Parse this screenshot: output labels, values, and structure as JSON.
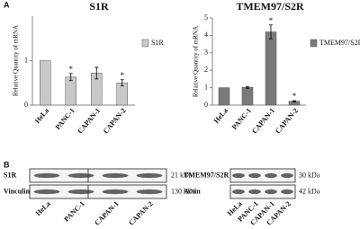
{
  "panel_labels": [
    "A",
    "B"
  ],
  "chart_data": [
    {
      "type": "bar",
      "title": "S1R",
      "y_label": "Relative Quantity of  mRNA",
      "categories": [
        "HeLa",
        "PANC-1",
        "CAPAN-1",
        "CAPAN-2"
      ],
      "series": [
        {
          "name": "S1R",
          "color": "#c8c8c8",
          "values": [
            1,
            0.63,
            0.72,
            0.5
          ],
          "errors": [
            0,
            0.08,
            0.13,
            0.07
          ]
        }
      ],
      "annotations": [
        {
          "category": "PANC-1",
          "text": "*"
        },
        {
          "category": "CAPAN-2",
          "text": "*"
        }
      ],
      "ylim": [
        0,
        2
      ],
      "yticks": [
        0,
        1
      ]
    },
    {
      "type": "bar",
      "title": "TMEM97/S2R",
      "y_label": "Relative Quantity of  mRNA",
      "categories": [
        "HeLa",
        "PANC-1",
        "CAPAN-1",
        "CAPAN-2"
      ],
      "series": [
        {
          "name": "TMEM97/S2R",
          "color": "#7a7a7a",
          "values": [
            1,
            1.02,
            4.2,
            0.22
          ],
          "errors": [
            0,
            0.05,
            0.4,
            0.03
          ]
        }
      ],
      "annotations": [
        {
          "category": "CAPAN-1",
          "text": "*"
        },
        {
          "category": "CAPAN-2",
          "text": "*"
        }
      ],
      "ylim": [
        0,
        5
      ],
      "yticks": [
        0,
        1,
        2,
        3,
        4,
        5
      ]
    }
  ],
  "blots": [
    {
      "rows": [
        {
          "protein": "S1R",
          "size": "21 kDa"
        },
        {
          "protein": "Vinculin",
          "size": "130 kDa"
        }
      ],
      "lanes": [
        "HeLa",
        "PANC-1",
        "CAPAN-1",
        "CAPAN-2"
      ]
    },
    {
      "rows": [
        {
          "protein": "TMEM97/S2R",
          "size": "30 kDa"
        },
        {
          "protein": "Actin",
          "size": "42 kDa"
        }
      ],
      "lanes": [
        "HeLa",
        "PANC-1",
        "CAPAN-1",
        "CAPAN-2"
      ]
    }
  ]
}
